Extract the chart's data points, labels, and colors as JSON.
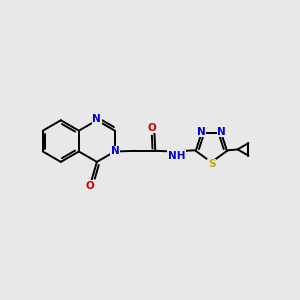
{
  "background_color": "#e8e8e8",
  "bond_color": "#000000",
  "atom_colors": {
    "N": "#0000cc",
    "O": "#cc0000",
    "S": "#bbaa00",
    "C": "#000000",
    "H": "#000000"
  },
  "figsize": [
    3.0,
    3.0
  ],
  "dpi": 100
}
